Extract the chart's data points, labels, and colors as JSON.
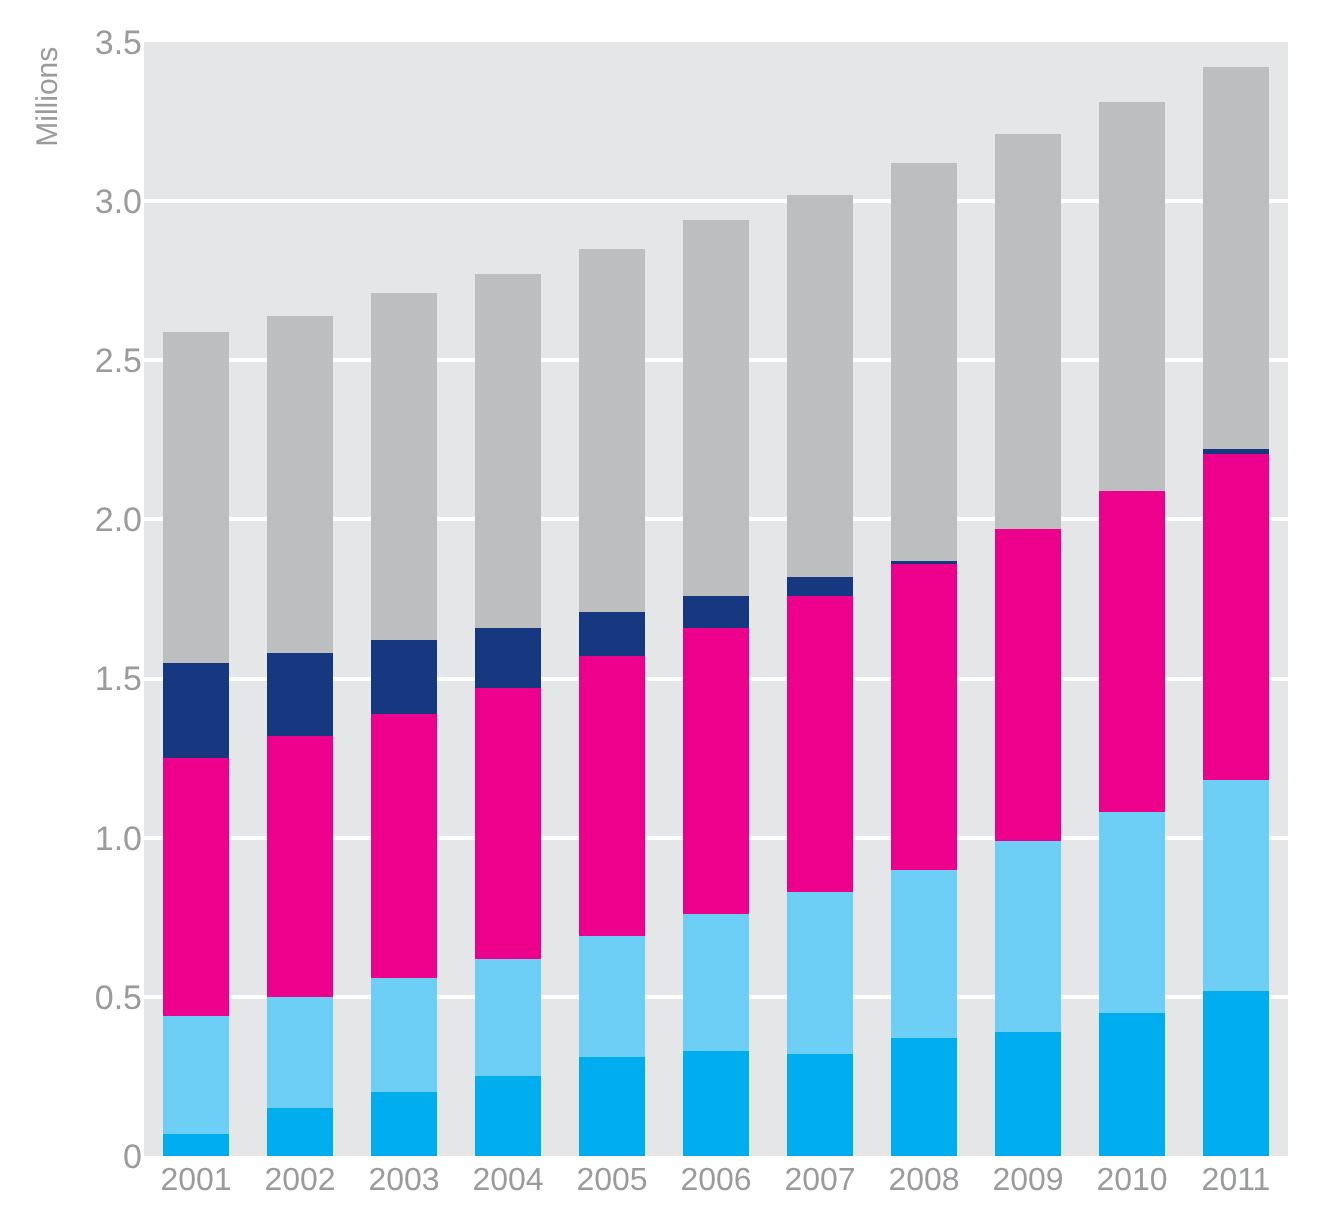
{
  "chart_data": {
    "type": "bar",
    "stacked": true,
    "ylabel": "Millions",
    "categories": [
      "2001",
      "2002",
      "2003",
      "2004",
      "2005",
      "2006",
      "2007",
      "2008",
      "2009",
      "2010",
      "2011"
    ],
    "series": [
      {
        "color": "#00adef",
        "values": [
          0.07,
          0.15,
          0.2,
          0.25,
          0.31,
          0.33,
          0.32,
          0.37,
          0.39,
          0.45,
          0.52
        ]
      },
      {
        "color": "#6dcff6",
        "values": [
          0.37,
          0.35,
          0.36,
          0.37,
          0.38,
          0.43,
          0.51,
          0.53,
          0.6,
          0.63,
          0.66
        ]
      },
      {
        "color": "#ec008c",
        "values": [
          0.81,
          0.82,
          0.83,
          0.85,
          0.88,
          0.9,
          0.93,
          0.96,
          0.98,
          1.01,
          1.03
        ]
      },
      {
        "color": "#163880",
        "values": [
          0.3,
          0.26,
          0.23,
          0.19,
          0.14,
          0.1,
          0.06,
          0.01,
          0,
          0,
          0.01
        ]
      },
      {
        "color": "#bdbec0",
        "values": [
          1.04,
          1.06,
          1.09,
          1.11,
          1.14,
          1.18,
          1.2,
          1.25,
          1.24,
          1.22,
          1.2
        ]
      }
    ],
    "ylim": [
      0,
      3.5
    ],
    "yticks": [
      0,
      0.5,
      {
        "value": 1,
        "label": "1.0"
      },
      1.5,
      {
        "value": 2,
        "label": "2.0"
      },
      2.5,
      {
        "value": 3,
        "label": "3.0"
      },
      3.5
    ],
    "grid": "y"
  }
}
